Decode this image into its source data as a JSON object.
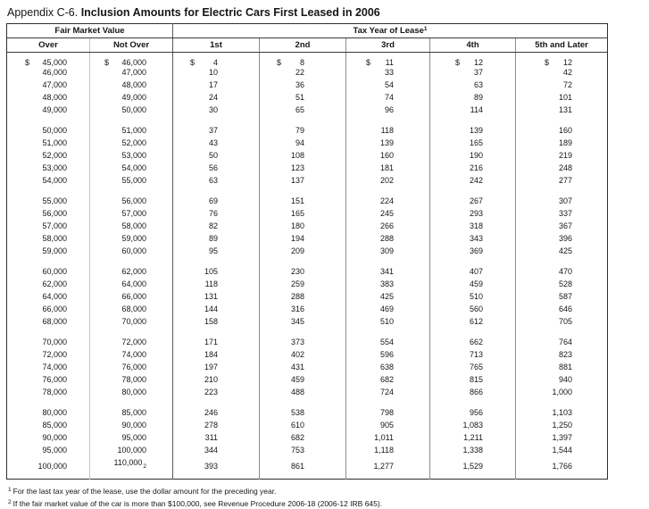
{
  "title": {
    "prefix": "Appendix C-6.",
    "main": "Inclusion Amounts for Electric Cars First Leased in 2006"
  },
  "table": {
    "group_headers": [
      {
        "label": "Fair Market Value"
      },
      {
        "label": "Tax Year of Lease",
        "footnote_ref": "1"
      }
    ],
    "columns": [
      "Over",
      "Not Over",
      "1st",
      "2nd",
      "3rd",
      "4th",
      "5th and Later"
    ],
    "row_groups": [
      [
        [
          "$ 45,000",
          "$ 46,000",
          "$ 4",
          "$ 8",
          "$ 11",
          "$ 12",
          "$ 12"
        ],
        [
          "46,000",
          "47,000",
          "10",
          "22",
          "33",
          "37",
          "42"
        ],
        [
          "47,000",
          "48,000",
          "17",
          "36",
          "54",
          "63",
          "72"
        ],
        [
          "48,000",
          "49,000",
          "24",
          "51",
          "74",
          "89",
          "101"
        ],
        [
          "49,000",
          "50,000",
          "30",
          "65",
          "96",
          "114",
          "131"
        ]
      ],
      [
        [
          "50,000",
          "51,000",
          "37",
          "79",
          "118",
          "139",
          "160"
        ],
        [
          "51,000",
          "52,000",
          "43",
          "94",
          "139",
          "165",
          "189"
        ],
        [
          "52,000",
          "53,000",
          "50",
          "108",
          "160",
          "190",
          "219"
        ],
        [
          "53,000",
          "54,000",
          "56",
          "123",
          "181",
          "216",
          "248"
        ],
        [
          "54,000",
          "55,000",
          "63",
          "137",
          "202",
          "242",
          "277"
        ]
      ],
      [
        [
          "55,000",
          "56,000",
          "69",
          "151",
          "224",
          "267",
          "307"
        ],
        [
          "56,000",
          "57,000",
          "76",
          "165",
          "245",
          "293",
          "337"
        ],
        [
          "57,000",
          "58,000",
          "82",
          "180",
          "266",
          "318",
          "367"
        ],
        [
          "58,000",
          "59,000",
          "89",
          "194",
          "288",
          "343",
          "396"
        ],
        [
          "59,000",
          "60,000",
          "95",
          "209",
          "309",
          "369",
          "425"
        ]
      ],
      [
        [
          "60,000",
          "62,000",
          "105",
          "230",
          "341",
          "407",
          "470"
        ],
        [
          "62,000",
          "64,000",
          "118",
          "259",
          "383",
          "459",
          "528"
        ],
        [
          "64,000",
          "66,000",
          "131",
          "288",
          "425",
          "510",
          "587"
        ],
        [
          "66,000",
          "68,000",
          "144",
          "316",
          "469",
          "560",
          "646"
        ],
        [
          "68,000",
          "70,000",
          "158",
          "345",
          "510",
          "612",
          "705"
        ]
      ],
      [
        [
          "70,000",
          "72,000",
          "171",
          "373",
          "554",
          "662",
          "764"
        ],
        [
          "72,000",
          "74,000",
          "184",
          "402",
          "596",
          "713",
          "823"
        ],
        [
          "74,000",
          "76,000",
          "197",
          "431",
          "638",
          "765",
          "881"
        ],
        [
          "76,000",
          "78,000",
          "210",
          "459",
          "682",
          "815",
          "940"
        ],
        [
          "78,000",
          "80,000",
          "223",
          "488",
          "724",
          "866",
          "1,000"
        ]
      ],
      [
        [
          "80,000",
          "85,000",
          "246",
          "538",
          "798",
          "956",
          "1,103"
        ],
        [
          "85,000",
          "90,000",
          "278",
          "610",
          "905",
          "1,083",
          "1,250"
        ],
        [
          "90,000",
          "95,000",
          "311",
          "682",
          "1,011",
          "1,211",
          "1,397"
        ],
        [
          "95,000",
          "100,000",
          "344",
          "753",
          "1,118",
          "1,338",
          "1,544"
        ],
        [
          "100,000",
          {
            "v": "110,000",
            "fn": "2"
          },
          "393",
          "861",
          "1,277",
          "1,529",
          "1,766"
        ]
      ]
    ]
  },
  "footnotes": [
    {
      "ref": "1",
      "text": "For the last tax year of the lease, use the dollar amount for the preceding year."
    },
    {
      "ref": "2",
      "text": "If the fair market value of the car is more than $100,000, see Revenue Procedure 2006-18 (2006-12 IRB 645)."
    }
  ]
}
